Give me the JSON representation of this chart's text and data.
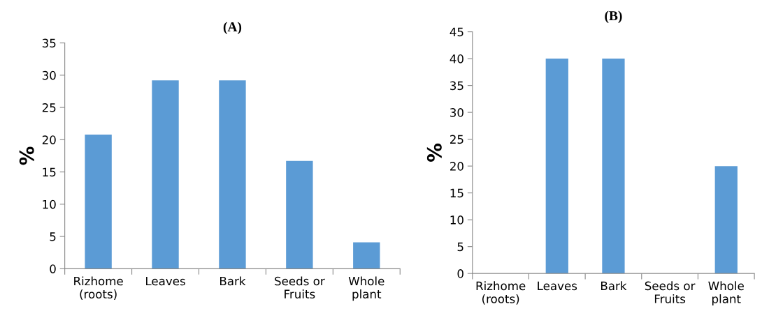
{
  "chart_data": [
    {
      "type": "bar",
      "title": "(A)",
      "ylabel": "%",
      "categories": [
        "Rizhome\n(roots)",
        "Leaves",
        "Bark",
        "Seeds or\nFruits",
        "Whole\nplant"
      ],
      "values": [
        20.8,
        29.2,
        29.2,
        16.7,
        4.1
      ],
      "color": "#5b9bd5",
      "ylim": [
        0,
        35
      ],
      "yticks": [
        0,
        5,
        10,
        15,
        20,
        25,
        30,
        35
      ],
      "grid": false,
      "legend": false
    },
    {
      "type": "bar",
      "title": "(B)",
      "ylabel": "%",
      "categories": [
        "Rizhome\n(roots)",
        "Leaves",
        "Bark",
        "Seeds or\nFruits",
        "Whole\nplant"
      ],
      "values": [
        0,
        40,
        40,
        0,
        20
      ],
      "color": "#5b9bd5",
      "ylim": [
        0,
        45
      ],
      "yticks": [
        0,
        5,
        10,
        15,
        20,
        25,
        30,
        35,
        40,
        45
      ],
      "grid": false,
      "legend": false
    }
  ]
}
